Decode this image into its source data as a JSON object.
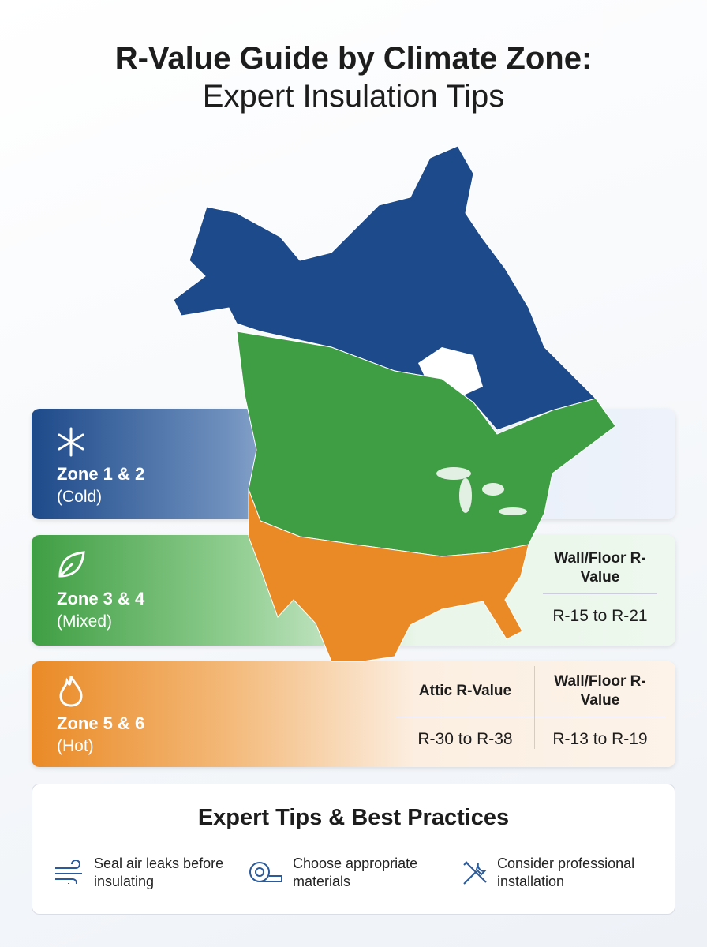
{
  "header": {
    "title_line1": "R-Value Guide by Climate Zone:",
    "title_line2": "Expert Insulation Tips"
  },
  "zones": [
    {
      "name": "Zone 1 & 2",
      "climate": "(Cold)"
    },
    {
      "name": "Zone 3 & 4",
      "climate": "(Mixed)",
      "columns": [
        {
          "heading": "Wall/Floor R-Value",
          "value": "R-15 to R-21"
        }
      ]
    },
    {
      "name": "Zone 5 & 6",
      "climate": "(Hot)",
      "columns": [
        {
          "heading": "Attic R-Value",
          "value": "R-30 to R-38"
        },
        {
          "heading": "Wall/Floor R-Value",
          "value": "R-13 to R-19"
        }
      ]
    }
  ],
  "tips": {
    "title": "Expert Tips & Best Practices",
    "items": [
      "Seal air leaks before insulating",
      "Choose appropriate materials",
      "Consider professional installation"
    ]
  }
}
